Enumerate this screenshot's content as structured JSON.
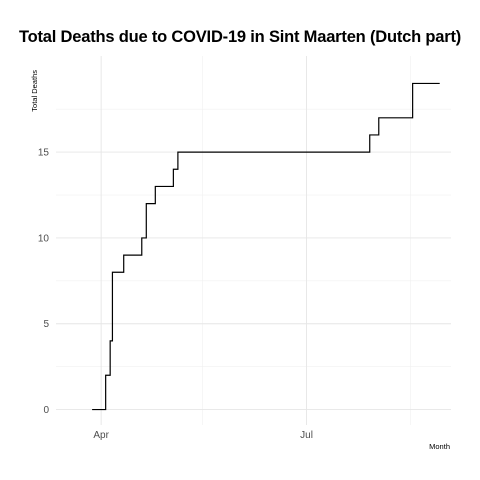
{
  "chart_data": {
    "type": "line",
    "title": "Total Deaths due to COVID-19 in Sint Maarten (Dutch part)",
    "xlabel": "Month",
    "ylabel": "Total Deaths",
    "xlim": [
      "2020-03-12",
      "2020-09-03"
    ],
    "ylim": [
      -0.9,
      20.6
    ],
    "y_ticks": [
      0,
      5,
      10,
      15
    ],
    "y_minor_ticks": [
      2.5,
      7.5,
      12.5,
      17.5
    ],
    "x_ticks": [
      {
        "date": "2020-04-01",
        "label": "Apr"
      },
      {
        "date": "2020-07-01",
        "label": "Jul"
      }
    ],
    "x_minor_ticks": [
      "2020-05-16",
      "2020-08-16"
    ],
    "grid": true,
    "line_color": "#000000",
    "series": [
      {
        "step": true,
        "x": [
          "2020-03-28",
          "2020-03-31",
          "2020-04-03",
          "2020-04-05",
          "2020-04-06",
          "2020-04-07",
          "2020-04-11",
          "2020-04-19",
          "2020-04-21",
          "2020-04-23",
          "2020-04-25",
          "2020-05-03",
          "2020-05-05",
          "2020-05-08",
          "2020-07-29",
          "2020-08-02",
          "2020-08-17",
          "2020-08-29"
        ],
        "y": [
          0,
          0,
          2,
          4,
          8,
          8,
          9,
          10,
          12,
          12,
          13,
          14,
          15,
          15,
          16,
          17,
          19,
          19
        ]
      }
    ]
  }
}
